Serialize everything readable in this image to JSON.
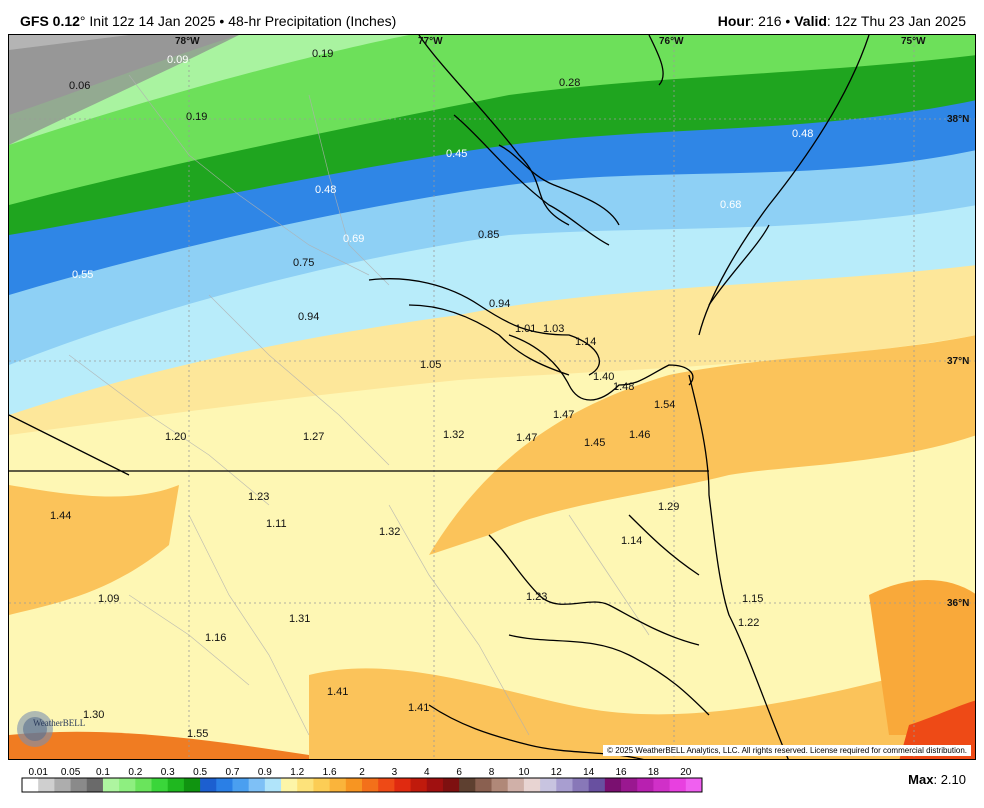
{
  "header": {
    "model": "GFS 0.12",
    "deg": "°",
    "init": " Init 12z 14 Jan 2025",
    "bullet": " • ",
    "product": "48-hr Precipitation (Inches)",
    "hour_label": "Hour",
    "hour_value": ": 216",
    "valid_label": "Valid",
    "valid_value": ": 12z Thu 23 Jan 2025"
  },
  "map": {
    "coords": [
      "78°W",
      "77°W",
      "76°W",
      "75°W",
      "38°N",
      "37°N",
      "36°N"
    ],
    "values": [
      "0.09",
      "0.19",
      "0.06",
      "0.19",
      "0.28",
      "0.45",
      "0.48",
      "0.48",
      "0.68",
      "0.69",
      "0.85",
      "0.75",
      "0.55",
      "0.94",
      "0.94",
      "1.01",
      "1.03",
      "1.14",
      "1.05",
      "1.40",
      "1.48",
      "1.54",
      "1.47",
      "1.20",
      "1.27",
      "1.32",
      "1.47",
      "1.45",
      "1.46",
      "1.23",
      "1.29",
      "1.44",
      "1.11",
      "1.32",
      "1.14",
      "1.09",
      "1.23",
      "1.15",
      "1.31",
      "1.22",
      "1.16",
      "1.41",
      "1.30",
      "1.41",
      "1.55"
    ],
    "copyright": "© 2025 WeatherBELL Analytics, LLC. All rights reserved. License required for commercial distribution.",
    "logo_text": "WeatherBELL"
  },
  "colorbar": {
    "ticks": [
      "0.01",
      "0.05",
      "0.1",
      "0.2",
      "0.3",
      "0.5",
      "0.7",
      "0.9",
      "1.2",
      "1.6",
      "2",
      "3",
      "4",
      "6",
      "8",
      "10",
      "12",
      "14",
      "16",
      "18",
      "20"
    ],
    "colors": [
      "#ffffff",
      "#cfcfcf",
      "#adadad",
      "#8a8a8a",
      "#6a6a6a",
      "#aef5a0",
      "#8eef80",
      "#6ae45c",
      "#3ad63a",
      "#1fb81f",
      "#109410",
      "#1c5fd0",
      "#2a7fe6",
      "#4a9ff0",
      "#7ec0f6",
      "#b0e4fa",
      "#fdf5a8",
      "#fde27a",
      "#fccd55",
      "#fab43b",
      "#f79522",
      "#f3701a",
      "#ee4a16",
      "#e02a10",
      "#c01a0c",
      "#a01010",
      "#7e1010",
      "#5e4030",
      "#8a6050",
      "#b08878",
      "#d0b0a8",
      "#e8d4d2",
      "#c8c4e0",
      "#a89ed0",
      "#8878b8",
      "#6850a0",
      "#7a1070",
      "#9a1890",
      "#b820b0",
      "#d030c8",
      "#e840e0",
      "#f060f0"
    ]
  },
  "max": {
    "label": "Max",
    "value": ": 2.10"
  }
}
